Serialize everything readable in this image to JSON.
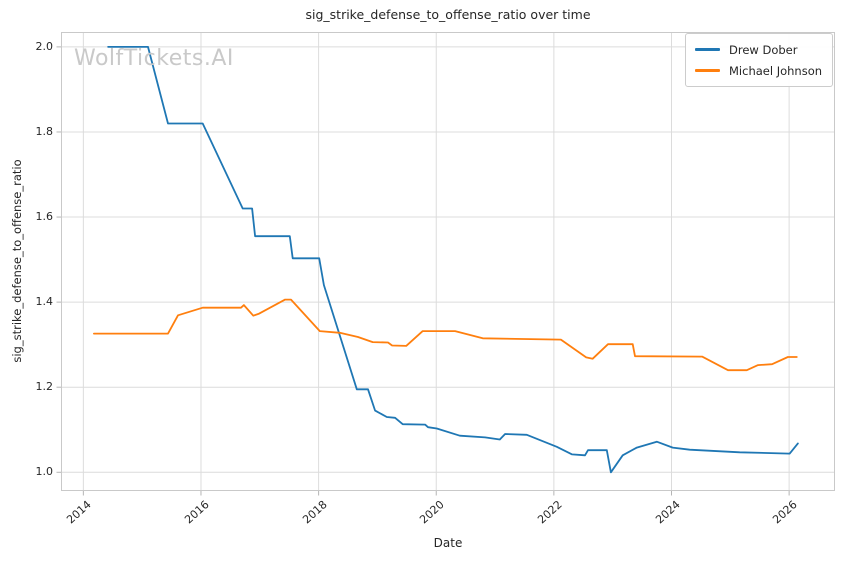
{
  "watermark": "WolfTickets.AI",
  "chart_data": {
    "type": "line",
    "title": "sig_strike_defense_to_offense_ratio over time",
    "xlabel": "Date",
    "ylabel": "sig_strike_defense_to_offense_ratio",
    "grid": true,
    "legend_position": "upper right",
    "xlim": [
      2013.62,
      2026.78
    ],
    "ylim": [
      0.956,
      2.035
    ],
    "xticks": {
      "values": [
        2014,
        2016,
        2018,
        2020,
        2022,
        2024,
        2026
      ],
      "labels": [
        "2014",
        "2016",
        "2018",
        "2020",
        "2022",
        "2024",
        "2026"
      ]
    },
    "yticks": {
      "values": [
        1.0,
        1.2,
        1.4,
        1.6,
        1.8,
        2.0
      ],
      "labels": [
        "1.0",
        "1.2",
        "1.4",
        "1.6",
        "1.8",
        "2.0"
      ]
    },
    "series": [
      {
        "name": "Drew Dober",
        "color": "#1f77b4",
        "points": [
          [
            2014.42,
            2.0
          ],
          [
            2015.1,
            2.0
          ],
          [
            2015.44,
            1.82
          ],
          [
            2016.03,
            1.82
          ],
          [
            2016.71,
            1.62
          ],
          [
            2016.87,
            1.62
          ],
          [
            2016.92,
            1.555
          ],
          [
            2017.51,
            1.555
          ],
          [
            2017.56,
            1.503
          ],
          [
            2018.01,
            1.503
          ],
          [
            2018.09,
            1.44
          ],
          [
            2018.65,
            1.195
          ],
          [
            2018.84,
            1.195
          ],
          [
            2018.96,
            1.145
          ],
          [
            2019.16,
            1.13
          ],
          [
            2019.3,
            1.128
          ],
          [
            2019.43,
            1.113
          ],
          [
            2019.81,
            1.112
          ],
          [
            2019.86,
            1.106
          ],
          [
            2020.01,
            1.103
          ],
          [
            2020.4,
            1.086
          ],
          [
            2020.83,
            1.082
          ],
          [
            2021.08,
            1.077
          ],
          [
            2021.17,
            1.09
          ],
          [
            2021.54,
            1.088
          ],
          [
            2022.05,
            1.06
          ],
          [
            2022.31,
            1.042
          ],
          [
            2022.53,
            1.04
          ],
          [
            2022.58,
            1.052
          ],
          [
            2022.9,
            1.052
          ],
          [
            2022.97,
            1.0
          ],
          [
            2023.17,
            1.04
          ],
          [
            2023.41,
            1.058
          ],
          [
            2023.75,
            1.072
          ],
          [
            2024.02,
            1.058
          ],
          [
            2024.31,
            1.053
          ],
          [
            2025.16,
            1.047
          ],
          [
            2026.01,
            1.044
          ],
          [
            2026.15,
            1.068
          ]
        ]
      },
      {
        "name": "Michael Johnson",
        "color": "#ff7f0e",
        "points": [
          [
            2014.18,
            1.326
          ],
          [
            2015.44,
            1.326
          ],
          [
            2015.61,
            1.369
          ],
          [
            2016.03,
            1.387
          ],
          [
            2016.68,
            1.387
          ],
          [
            2016.73,
            1.393
          ],
          [
            2016.89,
            1.368
          ],
          [
            2016.99,
            1.373
          ],
          [
            2017.43,
            1.406
          ],
          [
            2017.53,
            1.406
          ],
          [
            2018.02,
            1.332
          ],
          [
            2018.36,
            1.328
          ],
          [
            2018.67,
            1.318
          ],
          [
            2018.92,
            1.306
          ],
          [
            2019.18,
            1.305
          ],
          [
            2019.25,
            1.298
          ],
          [
            2019.49,
            1.297
          ],
          [
            2019.77,
            1.332
          ],
          [
            2020.32,
            1.332
          ],
          [
            2020.79,
            1.315
          ],
          [
            2022.12,
            1.312
          ],
          [
            2022.55,
            1.27
          ],
          [
            2022.66,
            1.267
          ],
          [
            2022.92,
            1.301
          ],
          [
            2023.34,
            1.301
          ],
          [
            2023.38,
            1.273
          ],
          [
            2024.52,
            1.272
          ],
          [
            2024.96,
            1.24
          ],
          [
            2025.28,
            1.24
          ],
          [
            2025.47,
            1.252
          ],
          [
            2025.71,
            1.254
          ],
          [
            2025.98,
            1.271
          ],
          [
            2026.13,
            1.271
          ]
        ]
      }
    ]
  }
}
